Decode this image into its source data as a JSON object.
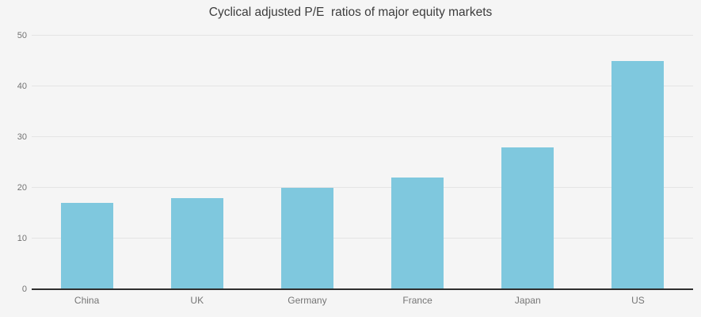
{
  "page": {
    "background_color": "#f5f5f5"
  },
  "chart_data": {
    "type": "bar",
    "title": "Cyclical adjusted P/E  ratios of major equity markets",
    "categories": [
      "China",
      "UK",
      "Germany",
      "France",
      "Japan",
      "US"
    ],
    "values": [
      17,
      18,
      20,
      22,
      28,
      45
    ],
    "xlabel": "",
    "ylabel": "",
    "ylim": [
      0,
      50
    ],
    "yticks": [
      0,
      10,
      20,
      30,
      40,
      50
    ],
    "grid": true,
    "legend_position": "none",
    "bar_color": "#7fc8de",
    "grid_color": "#e4e4e4",
    "axis_line_color": "#2f2f2f",
    "tick_label_color": "#737373",
    "category_label_color": "#757575",
    "title_color": "#3c3c3c"
  }
}
